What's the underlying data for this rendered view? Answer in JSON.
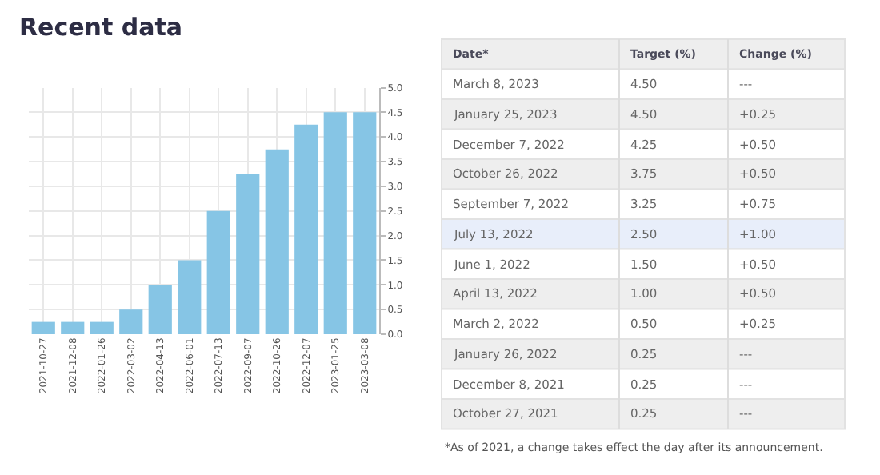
{
  "chart_data": [
    {
      "type": "bar",
      "title": "Recent data",
      "categories": [
        "2021-10-27",
        "2021-12-08",
        "2022-01-26",
        "2022-03-02",
        "2022-04-13",
        "2022-06-01",
        "2022-07-13",
        "2022-09-07",
        "2022-10-26",
        "2022-12-07",
        "2023-01-25",
        "2023-03-08"
      ],
      "values": [
        0.25,
        0.25,
        0.25,
        0.5,
        1.0,
        1.5,
        2.5,
        3.25,
        3.75,
        4.25,
        4.5,
        4.5
      ],
      "color": "#86c5e5",
      "ylim": [
        0,
        5
      ],
      "yticks": [
        {
          "value": 0,
          "label": "0.0"
        },
        {
          "value": 0.5,
          "label": "0.5"
        },
        {
          "value": 1,
          "label": "1.0"
        },
        {
          "value": 1.5,
          "label": "1.5"
        },
        {
          "value": 2,
          "label": "2.0"
        },
        {
          "value": 2.5,
          "label": "2.5"
        },
        {
          "value": 3,
          "label": "3.0"
        },
        {
          "value": 3.5,
          "label": "3.5"
        },
        {
          "value": 4,
          "label": "4.0"
        },
        {
          "value": 4.5,
          "label": "4.5"
        },
        {
          "value": 5,
          "label": "5.0"
        }
      ],
      "grid": true
    },
    {
      "type": "other",
      "annotations": [
        "Date*",
        "Target (%)",
        "Change (%)",
        "March 8, 2023",
        "4.50",
        "---",
        "January 25, 2023",
        "4.50",
        "+0.25",
        "December 7, 2022",
        "4.25",
        "+0.50",
        "October 26, 2022",
        "3.75",
        "+0.50",
        "September 7, 2022",
        "3.25",
        "+0.75",
        "July 13, 2022",
        "2.50",
        "+1.00",
        "June 1, 2022",
        "1.50",
        "+0.50",
        "April 13, 2022",
        "1.00",
        "+0.50",
        "March 2, 2022",
        "0.50",
        "+0.25",
        "January 26, 2022",
        "0.25",
        "---",
        "December 8, 2021",
        "0.25",
        "---",
        "October 27, 2021",
        "0.25",
        "---",
        "*As of 2021, a change takes effect the day after its announcement."
      ]
    }
  ]
}
